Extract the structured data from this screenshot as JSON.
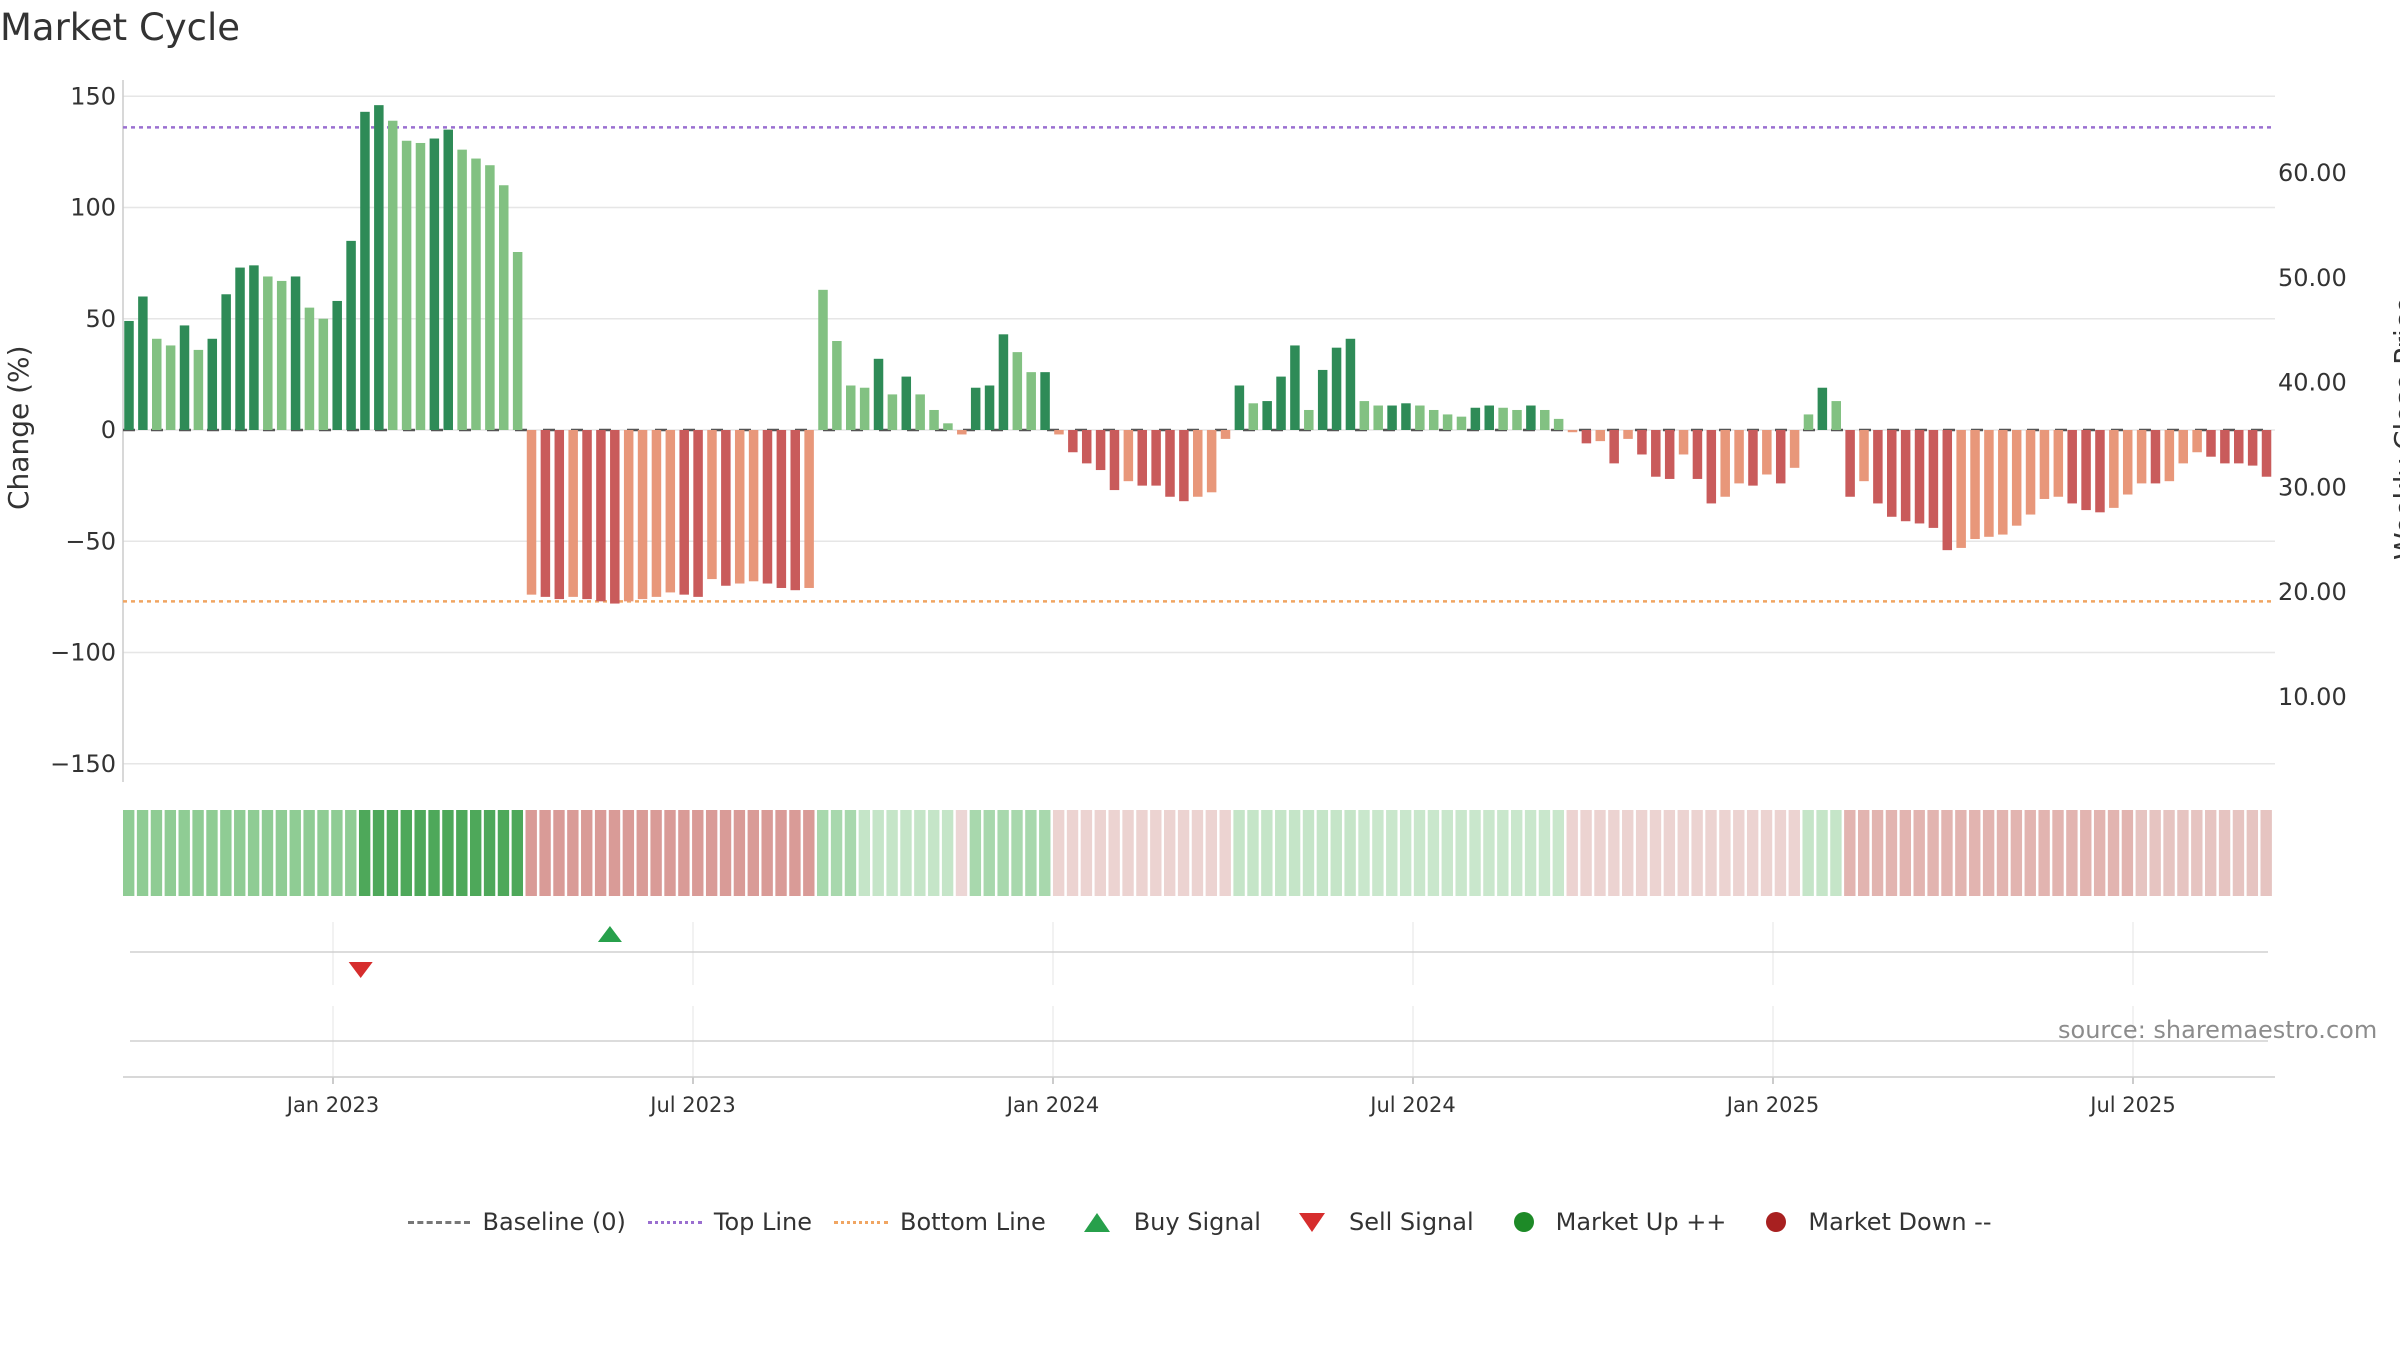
{
  "title": "Market Cycle",
  "source_text": "source: sharemaestro.com",
  "colors": {
    "up_strong": "#2e8b57",
    "up_light": "#82c182",
    "down_strong": "#c95b5b",
    "down_light": "#e8977a",
    "top_line": "#9a6fd0",
    "bottom_line": "#f0a562",
    "buy": "#27a04b",
    "sell": "#d62d2d"
  },
  "chart_data": {
    "type": "bar",
    "title": "Market Cycle",
    "ylabel": "Change (%)",
    "y2label": "Weekly Close Price",
    "ylim": [
      -150,
      150
    ],
    "y_ticks": [
      150,
      100,
      50,
      0,
      -50,
      -100,
      -150
    ],
    "y_tick_labels": [
      "150",
      "100",
      "50",
      "0",
      "−50",
      "−100",
      "−150"
    ],
    "y2_ticks": [
      60,
      50,
      40,
      30,
      20,
      10
    ],
    "y2_tick_labels": [
      "60.00",
      "50.00",
      "40.00",
      "30.00",
      "20.00",
      "10.00"
    ],
    "top_line": 136,
    "bottom_line": -77,
    "x_start_week": -20,
    "x_weeks_per_bar": 1,
    "x_tick_labels": [
      "Jan 2023",
      "Jul 2023",
      "Jan 2024",
      "Jul 2024",
      "Jan 2025",
      "Jul 2025"
    ],
    "x_tick_weeks": [
      0,
      26,
      52,
      78,
      104,
      130
    ],
    "values": [
      49,
      60,
      41,
      38,
      47,
      36,
      41,
      61,
      73,
      74,
      69,
      67,
      69,
      55,
      50,
      58,
      85,
      143,
      146,
      139,
      130,
      129,
      131,
      135,
      126,
      122,
      119,
      110,
      80,
      -74,
      -75,
      -76,
      -75,
      -76,
      -77,
      -78,
      -77,
      -76,
      -75,
      -73,
      -74,
      -75,
      -67,
      -70,
      -69,
      -68,
      -69,
      -71,
      -72,
      -71,
      63,
      40,
      20,
      19,
      32,
      16,
      24,
      16,
      9,
      3,
      -2,
      19,
      20,
      43,
      35,
      26,
      26,
      -2,
      -10,
      -15,
      -18,
      -27,
      -23,
      -25,
      -25,
      -30,
      -32,
      -30,
      -28,
      -4,
      20,
      12,
      13,
      24,
      38,
      9,
      27,
      37,
      41,
      13,
      11,
      11,
      12,
      11,
      9,
      7,
      6,
      10,
      11,
      10,
      9,
      11,
      9,
      5,
      -1,
      -6,
      -5,
      -15,
      -4,
      -11,
      -21,
      -22,
      -11,
      -22,
      -33,
      -30,
      -24,
      -25,
      -20,
      -24,
      -17,
      7,
      19,
      13,
      -30,
      -23,
      -33,
      -39,
      -41,
      -42,
      -44,
      -54,
      -53,
      -49,
      -48,
      -47,
      -43,
      -38,
      -31,
      -30,
      -33,
      -36,
      -37,
      -35,
      -29,
      -24,
      -24,
      -23,
      -15,
      -10,
      -12,
      -15,
      -15,
      -16,
      -21
    ],
    "strength_colors": [
      "#8fcc94",
      "#8fcc94",
      "#8fcc94",
      "#8fcc94",
      "#8fcc94",
      "#8fcc94",
      "#8fcc94",
      "#8fcc94",
      "#8fcc94",
      "#8fcc94",
      "#8fcc94",
      "#8fcc94",
      "#8fcc94",
      "#8fcc94",
      "#8fcc94",
      "#8fcc94",
      "#8fcc94",
      "#4ea85a",
      "#4ea85a",
      "#4ea85a",
      "#4ea85a",
      "#4ea85a",
      "#4ea85a",
      "#4ea85a",
      "#4ea85a",
      "#4ea85a",
      "#4ea85a",
      "#4ea85a",
      "#4ea85a",
      "#d99b97",
      "#d99b97",
      "#d99b97",
      "#d99b97",
      "#d99b97",
      "#d99b97",
      "#d99b97",
      "#d99b97",
      "#d99b97",
      "#d99b97",
      "#d99b97",
      "#d99b97",
      "#d99b97",
      "#d99b97",
      "#d99b97",
      "#d99b97",
      "#d99b97",
      "#d99b97",
      "#d99b97",
      "#d99b97",
      "#d99b97",
      "#a8d8ad",
      "#a8d8ad",
      "#a8d8ad",
      "#c5e5c8",
      "#c5e5c8",
      "#c5e5c8",
      "#c5e5c8",
      "#c5e5c8",
      "#c5e5c8",
      "#c5e5c8",
      "#ecd6d5",
      "#a8d8ad",
      "#a8d8ad",
      "#a8d8ad",
      "#a8d8ad",
      "#a8d8ad",
      "#a8d8ad",
      "#ecd3d1",
      "#ecd3d1",
      "#ecd3d1",
      "#ecd3d1",
      "#ecd3d1",
      "#ecd3d1",
      "#ecd3d1",
      "#ecd3d1",
      "#ecd3d1",
      "#ecd3d1",
      "#ecd3d1",
      "#ecd3d1",
      "#ecd3d1",
      "#c5e5c8",
      "#c5e5c8",
      "#c5e5c8",
      "#c5e5c8",
      "#c5e5c8",
      "#c5e5c8",
      "#c5e5c8",
      "#c5e5c8",
      "#c5e5c8",
      "#c9e7cc",
      "#c9e7cc",
      "#c9e7cc",
      "#c9e7cc",
      "#c9e7cc",
      "#c9e7cc",
      "#c9e7cc",
      "#c9e7cc",
      "#c9e7cc",
      "#c9e7cc",
      "#c9e7cc",
      "#c9e7cc",
      "#c9e7cc",
      "#c9e7cc",
      "#c9e7cc",
      "#ecd3d1",
      "#ecd3d1",
      "#ecd3d1",
      "#ecd3d1",
      "#ecd3d1",
      "#ecd3d1",
      "#ecd3d1",
      "#ecd3d1",
      "#ecd3d1",
      "#ecd3d1",
      "#ecd3d1",
      "#ecd3d1",
      "#ecd3d1",
      "#ecd3d1",
      "#ecd3d1",
      "#ecd3d1",
      "#ecd3d1",
      "#c5e5c8",
      "#c5e5c8",
      "#c5e5c8",
      "#e2b4b0",
      "#e2b4b0",
      "#e2b4b0",
      "#e2b4b0",
      "#e2b4b0",
      "#e2b4b0",
      "#e2b4b0",
      "#e2b4b0",
      "#e2b4b0",
      "#e2b4b0",
      "#e2b4b0",
      "#e2b4b0",
      "#e2b4b0",
      "#e2b4b0",
      "#e2b4b0",
      "#e2b4b0",
      "#e2b4b0",
      "#e2b4b0",
      "#e2b4b0",
      "#e2b4b0",
      "#e2b4b0",
      "#e6c4c1",
      "#e6c4c1",
      "#e6c4c1",
      "#e6c4c1",
      "#e6c4c1",
      "#e6c4c1",
      "#e6c4c1",
      "#e6c4c1",
      "#e6c4c1",
      "#e6c4c1"
    ],
    "signals": [
      {
        "type": "sell",
        "week": 2
      },
      {
        "type": "buy",
        "week": 20
      }
    ]
  },
  "legend": [
    {
      "key": "baseline",
      "label": "Baseline (0)"
    },
    {
      "key": "top",
      "label": "Top Line"
    },
    {
      "key": "bottom",
      "label": "Bottom Line"
    },
    {
      "key": "buy",
      "label": "Buy Signal"
    },
    {
      "key": "sell",
      "label": "Sell Signal"
    },
    {
      "key": "up",
      "label": "Market Up ++"
    },
    {
      "key": "down",
      "label": "Market Down --"
    }
  ]
}
